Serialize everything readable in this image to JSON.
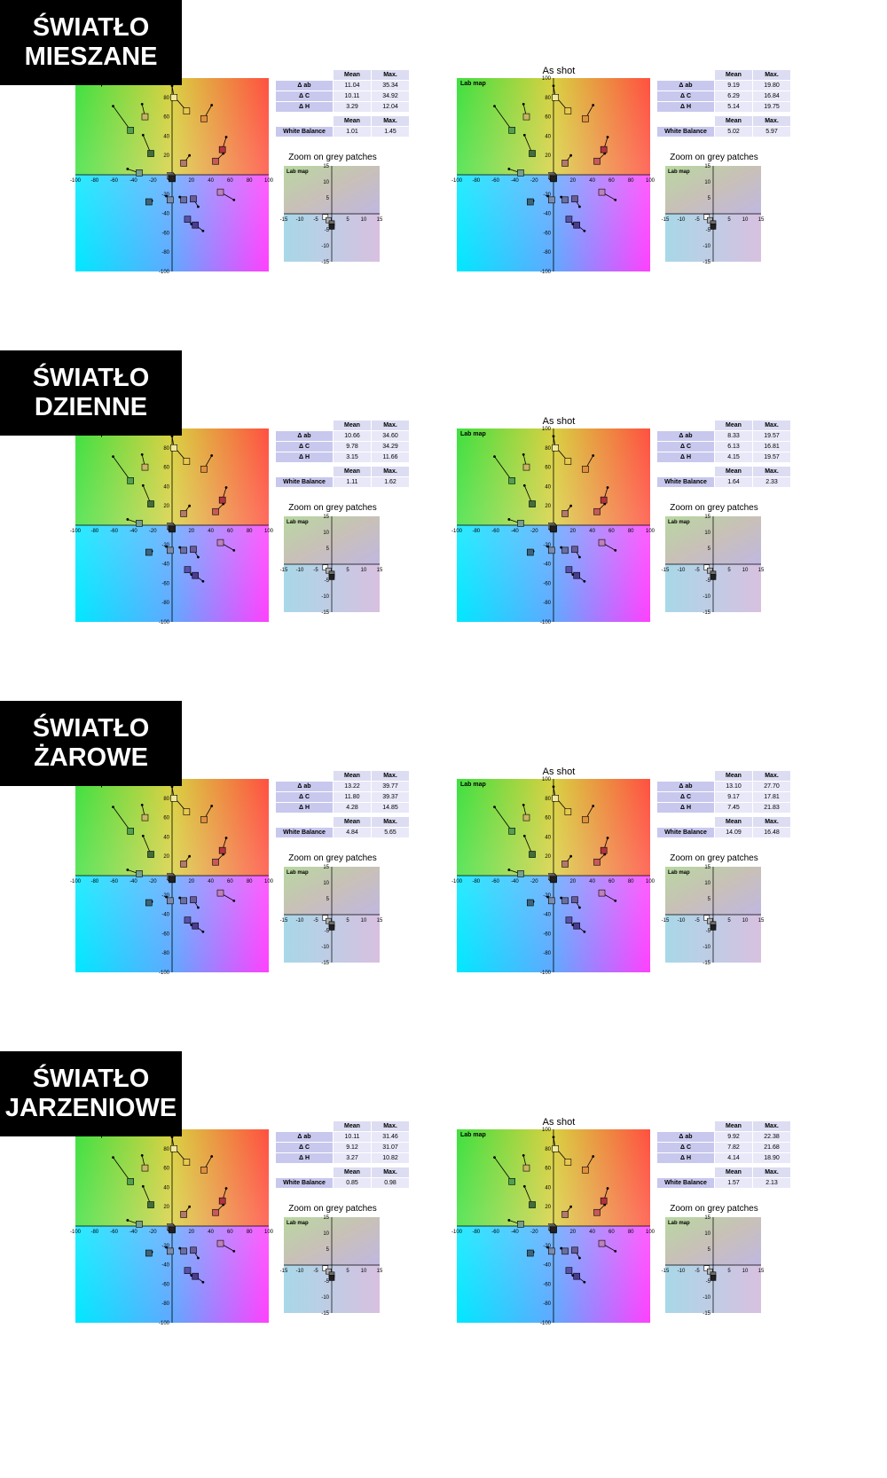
{
  "rows": [
    {
      "label": [
        "ŚWIATŁO",
        "MIESZANE"
      ],
      "panels": [
        {
          "title": "",
          "stats": {
            "rows": [
              [
                "Δ ab",
                "11.04",
                "35.34"
              ],
              [
                "Δ C",
                "10.11",
                "34.92"
              ],
              [
                "Δ H",
                "3.29",
                "12.04"
              ]
            ],
            "wb": [
              "White Balance",
              "1.01",
              "1.45"
            ]
          }
        },
        {
          "title": "As shot",
          "stats": {
            "rows": [
              [
                "Δ ab",
                "9.19",
                "19.80"
              ],
              [
                "Δ C",
                "6.29",
                "16.84"
              ],
              [
                "Δ H",
                "5.14",
                "19.75"
              ]
            ],
            "wb": [
              "White Balance",
              "5.02",
              "5.97"
            ]
          }
        }
      ]
    },
    {
      "label": [
        "ŚWIATŁO",
        "DZIENNE"
      ],
      "panels": [
        {
          "title": "",
          "stats": {
            "rows": [
              [
                "Δ ab",
                "10.66",
                "34.60"
              ],
              [
                "Δ C",
                "9.78",
                "34.29"
              ],
              [
                "Δ H",
                "3.15",
                "11.66"
              ]
            ],
            "wb": [
              "White Balance",
              "1.11",
              "1.62"
            ]
          }
        },
        {
          "title": "As shot",
          "stats": {
            "rows": [
              [
                "Δ ab",
                "8.33",
                "19.57"
              ],
              [
                "Δ C",
                "6.13",
                "16.81"
              ],
              [
                "Δ H",
                "4.15",
                "19.57"
              ]
            ],
            "wb": [
              "White Balance",
              "1.64",
              "2.33"
            ]
          }
        }
      ]
    },
    {
      "label": [
        "ŚWIATŁO",
        "ŻAROWE"
      ],
      "panels": [
        {
          "title": "",
          "stats": {
            "rows": [
              [
                "Δ ab",
                "13.22",
                "39.77"
              ],
              [
                "Δ C",
                "11.80",
                "39.37"
              ],
              [
                "Δ H",
                "4.28",
                "14.85"
              ]
            ],
            "wb": [
              "White Balance",
              "4.84",
              "5.65"
            ]
          }
        },
        {
          "title": "As shot",
          "stats": {
            "rows": [
              [
                "Δ ab",
                "13.10",
                "27.70"
              ],
              [
                "Δ C",
                "9.17",
                "17.81"
              ],
              [
                "Δ H",
                "7.45",
                "21.83"
              ]
            ],
            "wb": [
              "White Balance",
              "14.09",
              "16.48"
            ]
          }
        }
      ]
    },
    {
      "label": [
        "ŚWIATŁO",
        "JARZENIOWE"
      ],
      "panels": [
        {
          "title": "",
          "stats": {
            "rows": [
              [
                "Δ ab",
                "10.11",
                "31.46"
              ],
              [
                "Δ C",
                "9.12",
                "31.07"
              ],
              [
                "Δ H",
                "3.27",
                "10.82"
              ]
            ],
            "wb": [
              "White Balance",
              "0.85",
              "0.98"
            ]
          }
        },
        {
          "title": "As shot",
          "stats": {
            "rows": [
              [
                "Δ ab",
                "9.92",
                "22.38"
              ],
              [
                "Δ C",
                "7.82",
                "21.68"
              ],
              [
                "Δ H",
                "4.14",
                "18.90"
              ]
            ],
            "wb": [
              "White Balance",
              "1.57",
              "2.13"
            ]
          }
        }
      ]
    }
  ],
  "common": {
    "title_fragment": "hot",
    "lab_map_label": "Lab map",
    "zoom_title": "Zoom on grey patches",
    "stats_headers": [
      "Mean",
      "Max."
    ]
  },
  "chart_data": {
    "type": "scatter",
    "title": "Lab map",
    "xlim": [
      -100,
      100
    ],
    "ylim": [
      -100,
      100
    ],
    "x_ticks": [
      -100,
      -80,
      -60,
      -40,
      -20,
      0,
      20,
      40,
      60,
      80,
      100
    ],
    "y_ticks": [
      -100,
      -80,
      -60,
      -40,
      -20,
      0,
      20,
      40,
      60,
      80,
      100
    ],
    "zoom": {
      "title": "Zoom on grey patches",
      "xlim": [
        -15,
        15
      ],
      "ylim": [
        -15,
        15
      ],
      "x_ticks": [
        -15,
        -10,
        -5,
        0,
        5,
        10,
        15
      ],
      "y_ticks": [
        -15,
        -10,
        -5,
        0,
        5,
        10,
        15
      ]
    },
    "patches": [
      {
        "a": -28,
        "b": 60,
        "da": -3,
        "db": 13,
        "color": "#c8b464"
      },
      {
        "a": -43,
        "b": 46,
        "da": -18,
        "db": 25,
        "color": "#50a050"
      },
      {
        "a": -22,
        "b": 22,
        "da": -8,
        "db": 19,
        "color": "#406e3c"
      },
      {
        "a": -34,
        "b": 2,
        "da": -12,
        "db": 4,
        "color": "#78a08c"
      },
      {
        "a": 15,
        "b": 66,
        "da": -12,
        "db": 14,
        "color": "#e8c850"
      },
      {
        "a": 33,
        "b": 58,
        "da": 8,
        "db": 14,
        "color": "#e09040"
      },
      {
        "a": 12,
        "b": 12,
        "da": 6,
        "db": 8,
        "color": "#b4786c"
      },
      {
        "a": 45,
        "b": 14,
        "da": 8,
        "db": 8,
        "color": "#c85a5a"
      },
      {
        "a": 52,
        "b": 26,
        "da": 4,
        "db": 13,
        "color": "#b43240"
      },
      {
        "a": 2,
        "b": 80,
        "da": -2,
        "db": 12,
        "color": "#f0e8a0"
      },
      {
        "a": -24,
        "b": -28,
        "da": 3,
        "db": 1,
        "color": "#3c6478"
      },
      {
        "a": -2,
        "b": -26,
        "da": -4,
        "db": 4,
        "color": "#7c8caa"
      },
      {
        "a": 12,
        "b": -26,
        "da": -4,
        "db": 3,
        "color": "#6c6ea0"
      },
      {
        "a": 22,
        "b": -25,
        "da": 5,
        "db": -8,
        "color": "#6a5a96"
      },
      {
        "a": 50,
        "b": -18,
        "da": 14,
        "db": -8,
        "color": "#c080b8"
      },
      {
        "a": 16,
        "b": -46,
        "da": 4,
        "db": -5,
        "color": "#5850a8"
      },
      {
        "a": 24,
        "b": -52,
        "da": 8,
        "db": -6,
        "color": "#4c3c90"
      },
      {
        "a": -2,
        "b": -1,
        "da": 0,
        "db": 0,
        "color": "#ffffff"
      },
      {
        "a": -1,
        "b": -2,
        "da": 0,
        "db": 0,
        "color": "#b0b0b0"
      },
      {
        "a": 0,
        "b": -3,
        "da": 0,
        "db": 0,
        "color": "#707070"
      },
      {
        "a": 0,
        "b": -4,
        "da": 0,
        "db": 0,
        "color": "#202020"
      }
    ]
  }
}
